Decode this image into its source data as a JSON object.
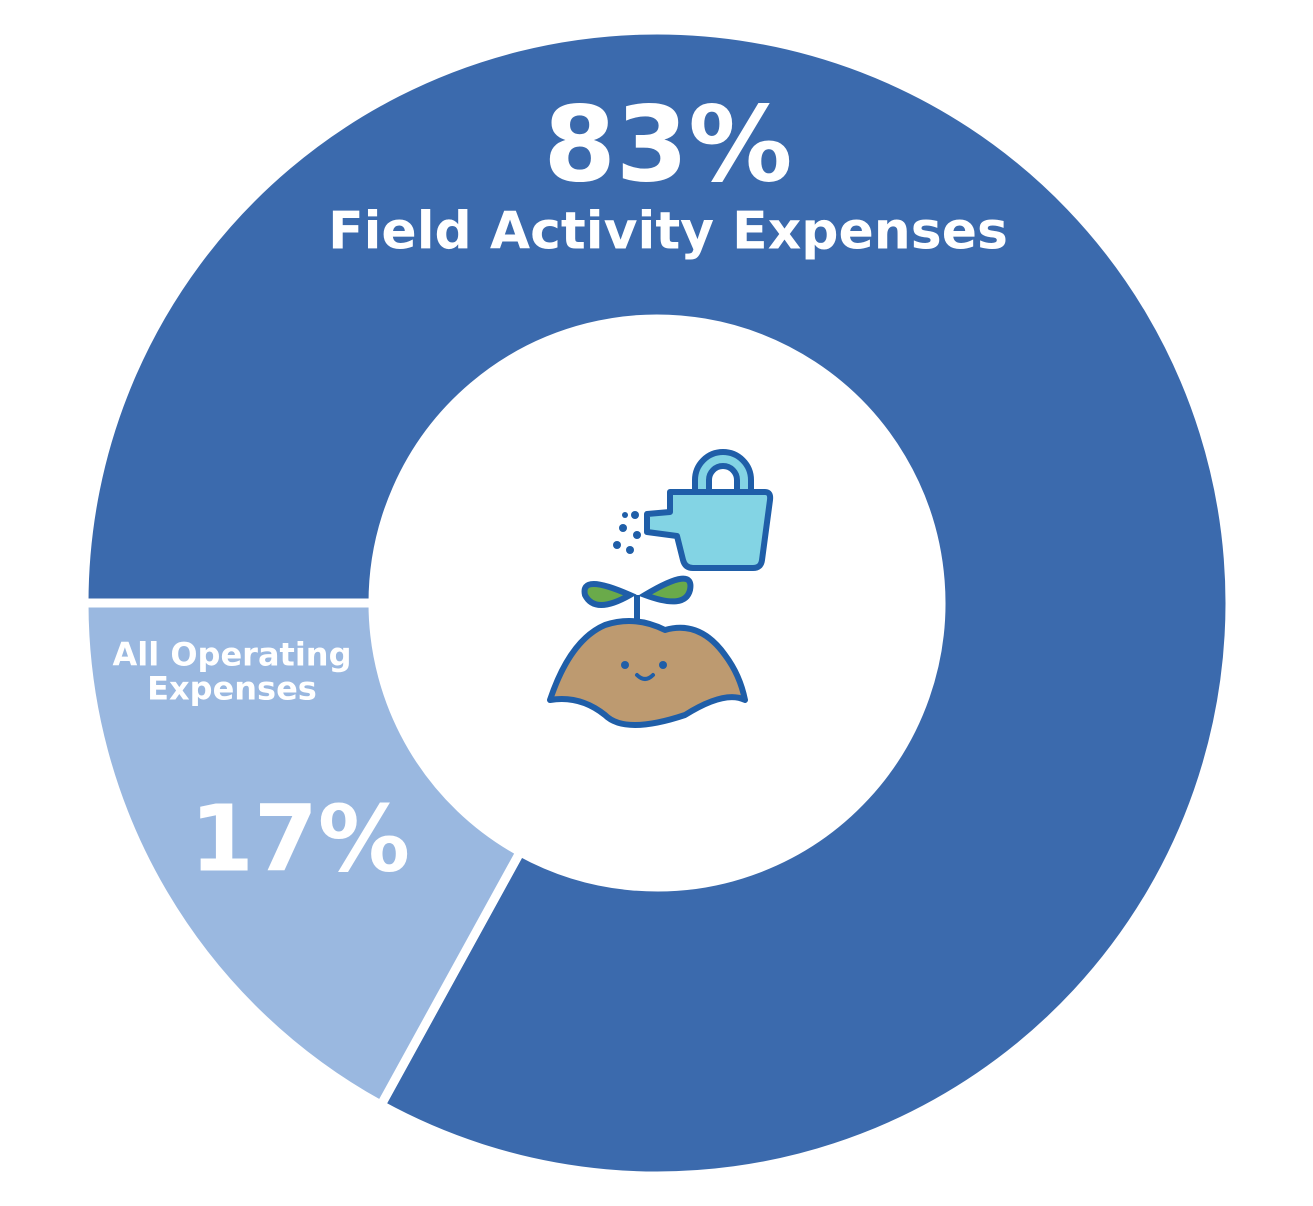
{
  "chart_data": {
    "type": "donut",
    "categories": [
      "Field Activity Expenses",
      "All Operating Expenses"
    ],
    "values": [
      83,
      17
    ],
    "value_labels": [
      "83%",
      "17%"
    ],
    "colors": [
      "#3b6aad",
      "#9ab8e0"
    ]
  }
}
